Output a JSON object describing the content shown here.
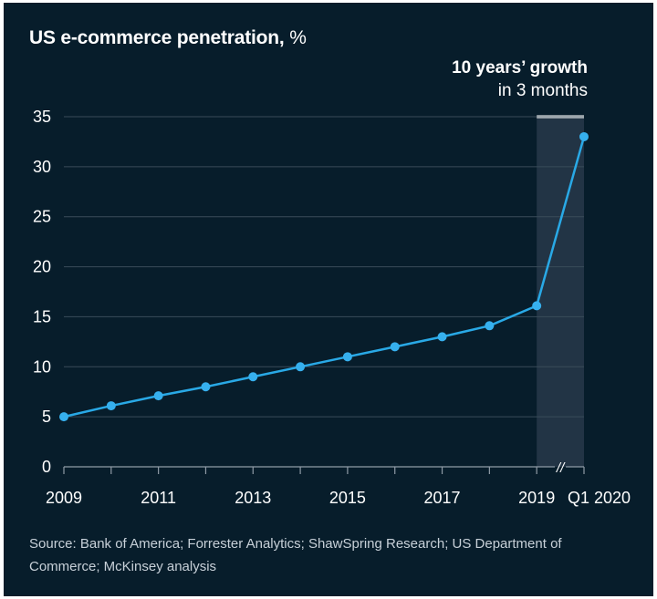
{
  "header": {
    "title": "US e-commerce penetration,",
    "title_unit": "%"
  },
  "annotation": {
    "line1": "10 years’ growth",
    "line2": "in 3 months"
  },
  "source": "Source: Bank of America; Forrester Analytics; ShawSpring Research; US Department of Commerce; McKinsey analysis",
  "colors": {
    "background": "#071d2b",
    "line": "#29a9e6",
    "marker": "#36b0ee",
    "highlight_band": "#223445",
    "gridline": "#3a4c5a",
    "text": "#ffffff"
  },
  "chart_data": {
    "type": "line",
    "title": "US e-commerce penetration, %",
    "x": [
      "2009",
      "2010",
      "2011",
      "2012",
      "2013",
      "2014",
      "2015",
      "2016",
      "2017",
      "2018",
      "2019",
      "Q1 2020"
    ],
    "x_tick_labels": [
      "2009",
      "",
      "2011",
      "",
      "2013",
      "",
      "2015",
      "",
      "2017",
      "",
      "2019",
      "Q1 2020"
    ],
    "series": [
      {
        "values": [
          5.0,
          6.1,
          7.1,
          8.0,
          9.0,
          10.0,
          11.0,
          12.0,
          13.0,
          14.1,
          16.1,
          33.0
        ]
      }
    ],
    "ylim": [
      0,
      35
    ],
    "yticks": [
      0,
      5,
      10,
      15,
      20,
      25,
      30,
      35
    ],
    "grid": true,
    "axis_break_between": [
      "2019",
      "Q1 2020"
    ],
    "axis_break_symbol": "//",
    "highlight_region": [
      "2019",
      "Q1 2020"
    ]
  }
}
